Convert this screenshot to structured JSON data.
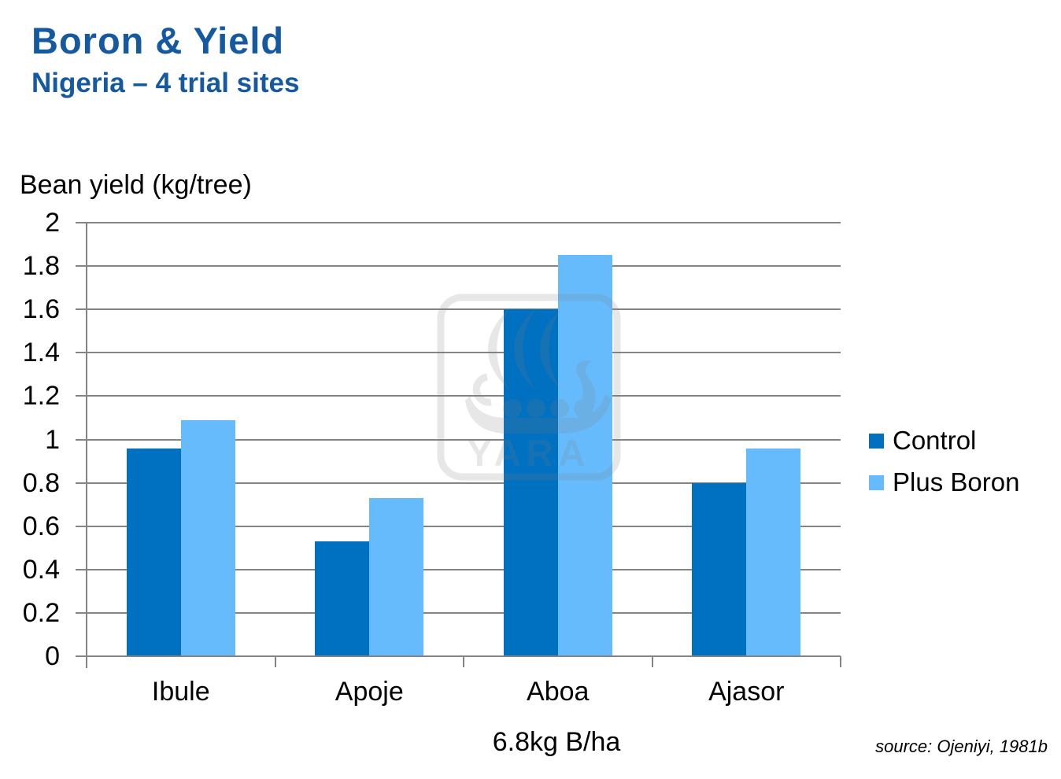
{
  "header": {
    "title": "Boron & Yield",
    "subtitle": "Nigeria – 4 trial sites"
  },
  "chart_data": {
    "type": "bar",
    "title": "Boron & Yield — Nigeria, 4 trial sites",
    "axis_title": "Bean yield (kg/tree)",
    "xlabel": "6.8kg B/ha",
    "ylabel": "Bean yield (kg/tree)",
    "categories": [
      "Ibule",
      "Apoje",
      "Aboa",
      "Ajasor"
    ],
    "series": [
      {
        "name": "Control",
        "color": "#0070C0",
        "values": [
          0.96,
          0.53,
          1.6,
          0.8
        ]
      },
      {
        "name": "Plus Boron",
        "color": "#66BBFC",
        "values": [
          1.09,
          0.73,
          1.85,
          0.96
        ]
      }
    ],
    "ylim": [
      0,
      2
    ],
    "ytick_step": 0.2,
    "yticks": [
      "2",
      "1.8",
      "1.6",
      "1.4",
      "1.2",
      "1",
      "0.8",
      "0.6",
      "0.4",
      "0.2",
      "0"
    ],
    "grid": true,
    "legend_position": "right"
  },
  "watermark": {
    "text": "YARA"
  },
  "footer": {
    "source": "source: Ojeniyi, 1981b"
  },
  "colors": {
    "title_blue": "#155AA0",
    "grid": "#848484",
    "watermark_gray": "#808080",
    "text": "#000000"
  }
}
